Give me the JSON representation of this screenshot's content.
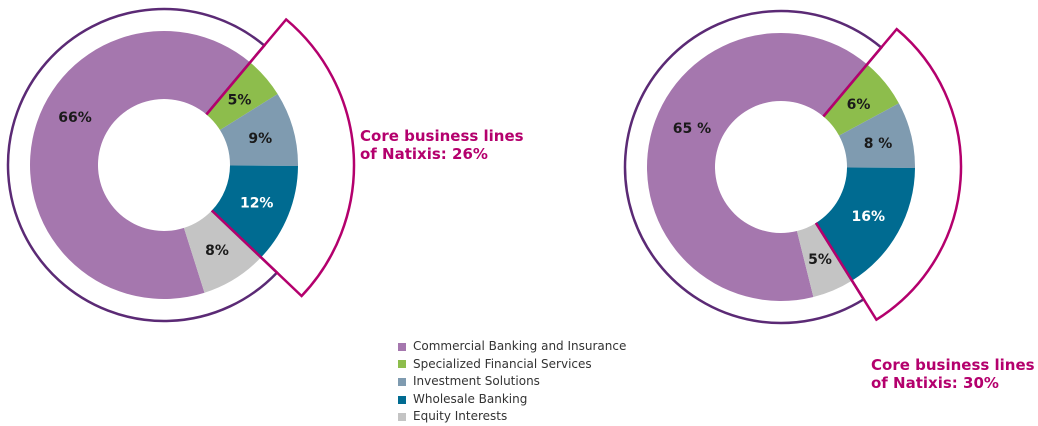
{
  "colors": {
    "commercial_banking": "#a577ae",
    "specialized_financial": "#8dbd4c",
    "investment_solutions": "#7f9bb0",
    "wholesale_banking": "#006b91",
    "equity_interests": "#c4c4c4",
    "outline_total": "#5b2a75",
    "outline_core": "#b4006d"
  },
  "legend": {
    "items": [
      {
        "label": "Commercial Banking and Insurance",
        "color": "#a577ae"
      },
      {
        "label": "Specialized Financial Services",
        "color": "#8dbd4c"
      },
      {
        "label": "Investment Solutions",
        "color": "#7f9bb0"
      },
      {
        "label": "Wholesale Banking",
        "color": "#006b91"
      },
      {
        "label": "Equity Interests",
        "color": "#c4c4c4"
      }
    ]
  },
  "core_labels": [
    {
      "line1": "Core business lines",
      "line2": "of Natixis: 26%"
    },
    {
      "line1": "Core business lines",
      "line2": "of Natixis: 30%"
    }
  ],
  "chart_data": [
    {
      "type": "pie",
      "categories": [
        "Commercial Banking and Insurance",
        "Specialized Financial Services",
        "Investment Solutions",
        "Wholesale Banking",
        "Equity Interests"
      ],
      "values": [
        66,
        5,
        9,
        12,
        8
      ],
      "labels": [
        "66%",
        "5%",
        "9%",
        "12%",
        "8%"
      ],
      "annotation": "Core business lines of Natixis: 26%"
    },
    {
      "type": "pie",
      "categories": [
        "Commercial Banking and Insurance",
        "Specialized Financial Services",
        "Investment Solutions",
        "Wholesale Banking",
        "Equity Interests"
      ],
      "values": [
        65,
        6,
        8,
        16,
        5
      ],
      "labels": [
        "65 %",
        "6%",
        "8 %",
        "16%",
        "5%"
      ],
      "annotation": "Core business lines of Natixis: 30%"
    }
  ]
}
